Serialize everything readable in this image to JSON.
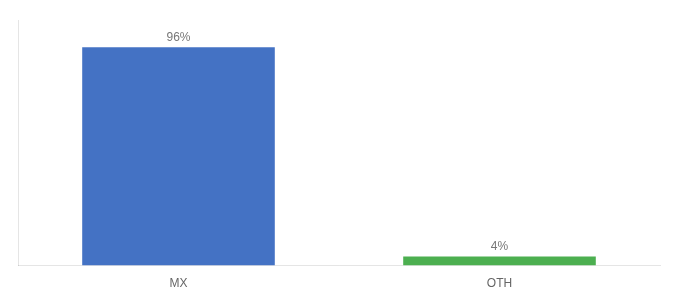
{
  "chart_data": {
    "type": "bar",
    "categories": [
      "MX",
      "OTH"
    ],
    "values": [
      96,
      4
    ],
    "value_labels": [
      "96%",
      "4%"
    ],
    "colors": [
      "#4472c4",
      "#4caf50"
    ],
    "ylim": [
      0,
      108
    ],
    "grid": false,
    "data_labels": true,
    "tick_labels": "x"
  }
}
